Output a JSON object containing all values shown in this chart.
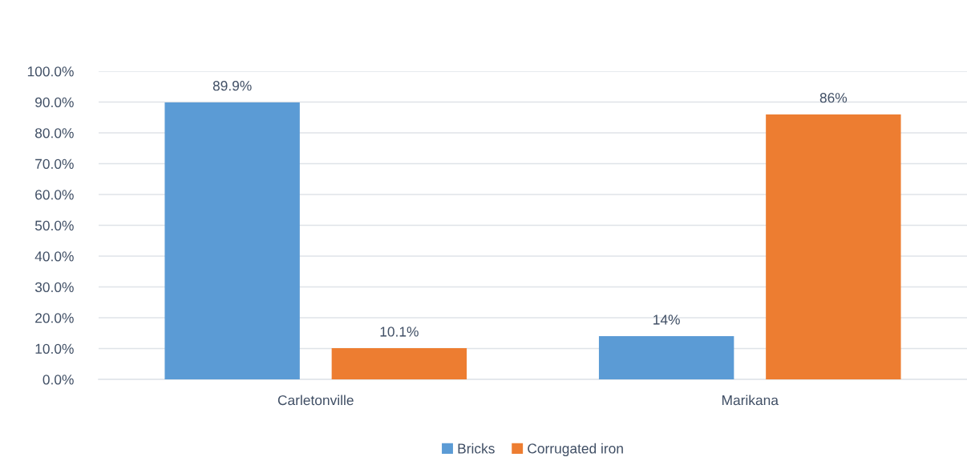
{
  "chart_data": {
    "type": "bar",
    "categories": [
      "Carletonville",
      "Marikana"
    ],
    "series": [
      {
        "name": "Bricks",
        "color": "#5b9bd5",
        "values": [
          89.9,
          14
        ],
        "value_labels": [
          "89.9%",
          "14%"
        ]
      },
      {
        "name": "Corrugated iron",
        "color": "#ed7d31",
        "values": [
          10.1,
          86
        ],
        "value_labels": [
          "10.1%",
          "86%"
        ]
      }
    ],
    "ylim": [
      0,
      100
    ],
    "yticks": [
      {
        "value": 0,
        "label": "0.0%"
      },
      {
        "value": 10,
        "label": "10.0%"
      },
      {
        "value": 20,
        "label": "20.0%"
      },
      {
        "value": 30,
        "label": "30.0%"
      },
      {
        "value": 40,
        "label": "40.0%"
      },
      {
        "value": 50,
        "label": "50.0%"
      },
      {
        "value": 60,
        "label": "60.0%"
      },
      {
        "value": 70,
        "label": "70.0%"
      },
      {
        "value": 80,
        "label": "80.0%"
      },
      {
        "value": 90,
        "label": "90.0%"
      },
      {
        "value": 100,
        "label": "100.0%"
      }
    ],
    "grid": "y",
    "legend": "bottom"
  }
}
